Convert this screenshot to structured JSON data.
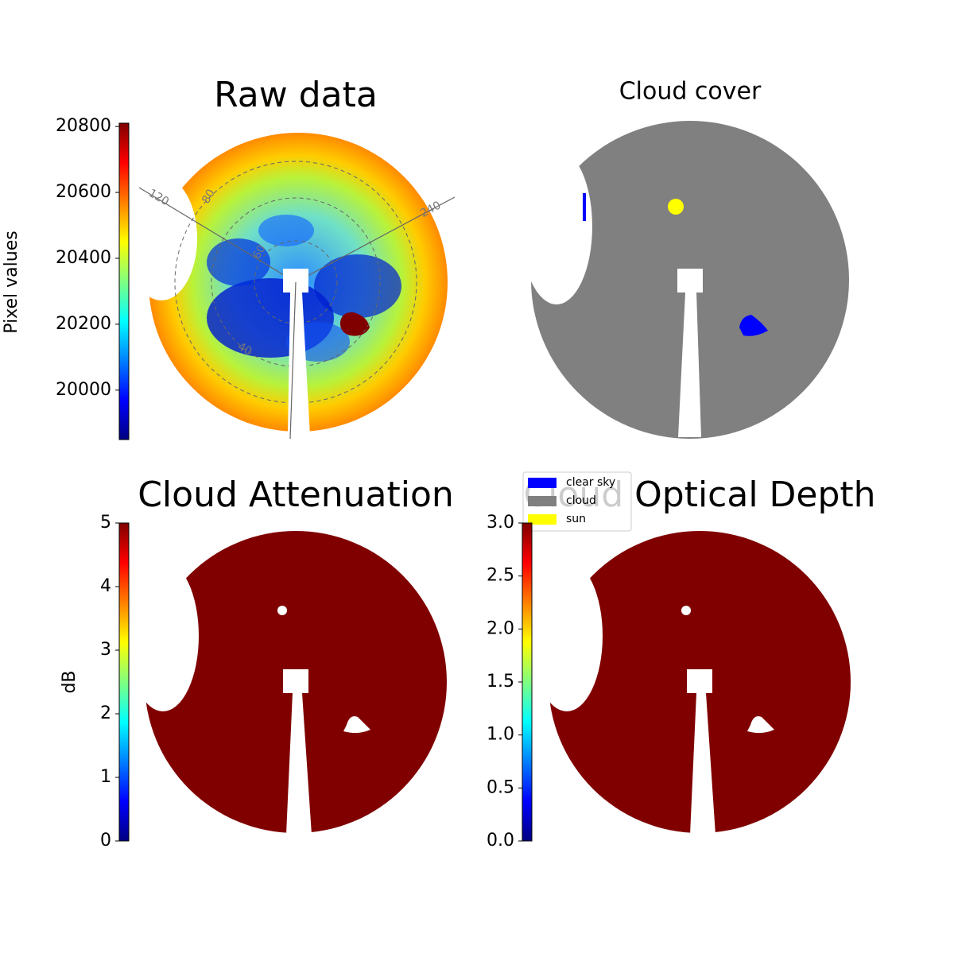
{
  "chart_data": [
    {
      "type": "image",
      "title": "Raw data",
      "colorbar_label": "Pixel values",
      "colormap": "jet",
      "ylim": [
        19850,
        20810
      ],
      "yticks": [
        20000,
        20200,
        20400,
        20600,
        20800
      ],
      "polar_labels": [
        "120",
        "240",
        "80",
        "60",
        "40"
      ]
    },
    {
      "type": "image",
      "title": "Cloud cover",
      "series": [
        {
          "name": "clear sky",
          "color": "#0000ff"
        },
        {
          "name": "cloud",
          "color": "#808080"
        },
        {
          "name": "sun",
          "color": "#ffff00"
        }
      ]
    },
    {
      "type": "image",
      "title": "Cloud Attenuation",
      "colorbar_label": "dB",
      "colormap": "jet",
      "ylim": [
        0,
        5
      ],
      "yticks": [
        0,
        1,
        2,
        3,
        4,
        5
      ]
    },
    {
      "type": "image",
      "title": "Cloud Optical Depth",
      "colormap": "jet",
      "ylim": [
        0,
        3
      ],
      "yticks": [
        {
          "value": 0,
          "label": "0.0"
        },
        0.5,
        {
          "value": 1,
          "label": "1.0"
        },
        1.5,
        {
          "value": 2,
          "label": "2.0"
        },
        2.5,
        {
          "value": 3,
          "label": "3.0"
        }
      ]
    }
  ]
}
